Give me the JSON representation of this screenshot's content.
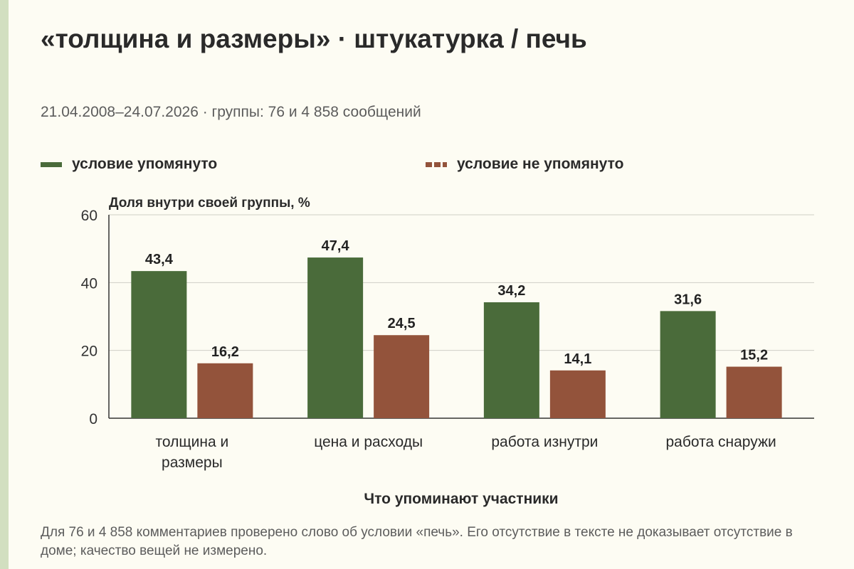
{
  "header": {
    "title": "«толщина и размеры» · штукатурка / печь",
    "subtitle": "21.04.2008–24.07.2026 · группы: 76 и 4 858 сообщений"
  },
  "colors": {
    "mentioned": "#4a6b3a",
    "not_mentioned": "#93533b",
    "stripe": "#d2dfc0",
    "background": "#fdfcf3"
  },
  "footnote": "Для 76 и 4 858 комментариев проверено слово об условии «печь». Его отсутствие в тексте не доказывает отсутствие в доме; качество вещей не измерено.",
  "chart_data": {
    "type": "bar",
    "title": "",
    "ylabel": "Доля внутри своей группы, %",
    "xlabel": "Что упоминают участники",
    "ylim": [
      0,
      60
    ],
    "yticks": [
      "0",
      "20",
      "40",
      "60"
    ],
    "grid": true,
    "legend_position": "top",
    "categories": [
      [
        "толщина и",
        "размеры"
      ],
      [
        "цена и расходы"
      ],
      [
        "работа изнутри"
      ],
      [
        "работа снаружи"
      ]
    ],
    "series": [
      {
        "name": "условие упомянуто",
        "values": [
          43.4,
          47.4,
          34.2,
          31.6
        ],
        "labels": [
          "43,4",
          "47,4",
          "34,2",
          "31,6"
        ]
      },
      {
        "name": "условие не упомянуто",
        "values": [
          16.2,
          24.5,
          14.1,
          15.2
        ],
        "labels": [
          "16,2",
          "24,5",
          "14,1",
          "15,2"
        ]
      }
    ]
  }
}
